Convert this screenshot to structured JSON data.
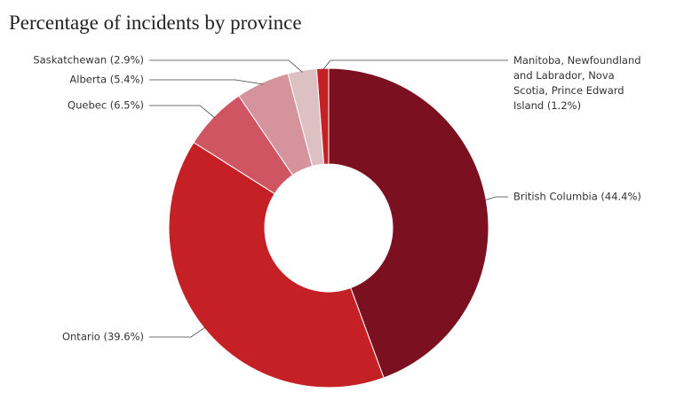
{
  "chart_data": {
    "type": "donut",
    "title": "Percentage of incidents by province",
    "categories": [
      "British Columbia (44.4%)",
      "Ontario (39.6%)",
      "Quebec (6.5%)",
      "Alberta (5.4%)",
      "Saskatchewan (2.9%)",
      "Manitoba, Newfoundland and Labrador, Nova Scotia, Prince Edward Island (1.2%)"
    ],
    "values": [
      44.4,
      39.6,
      6.5,
      5.4,
      2.9,
      1.2
    ],
    "colors": [
      "#7b1120",
      "#c42026",
      "#d05563",
      "#d5939b",
      "#dcc0c2",
      "#c42026"
    ]
  }
}
